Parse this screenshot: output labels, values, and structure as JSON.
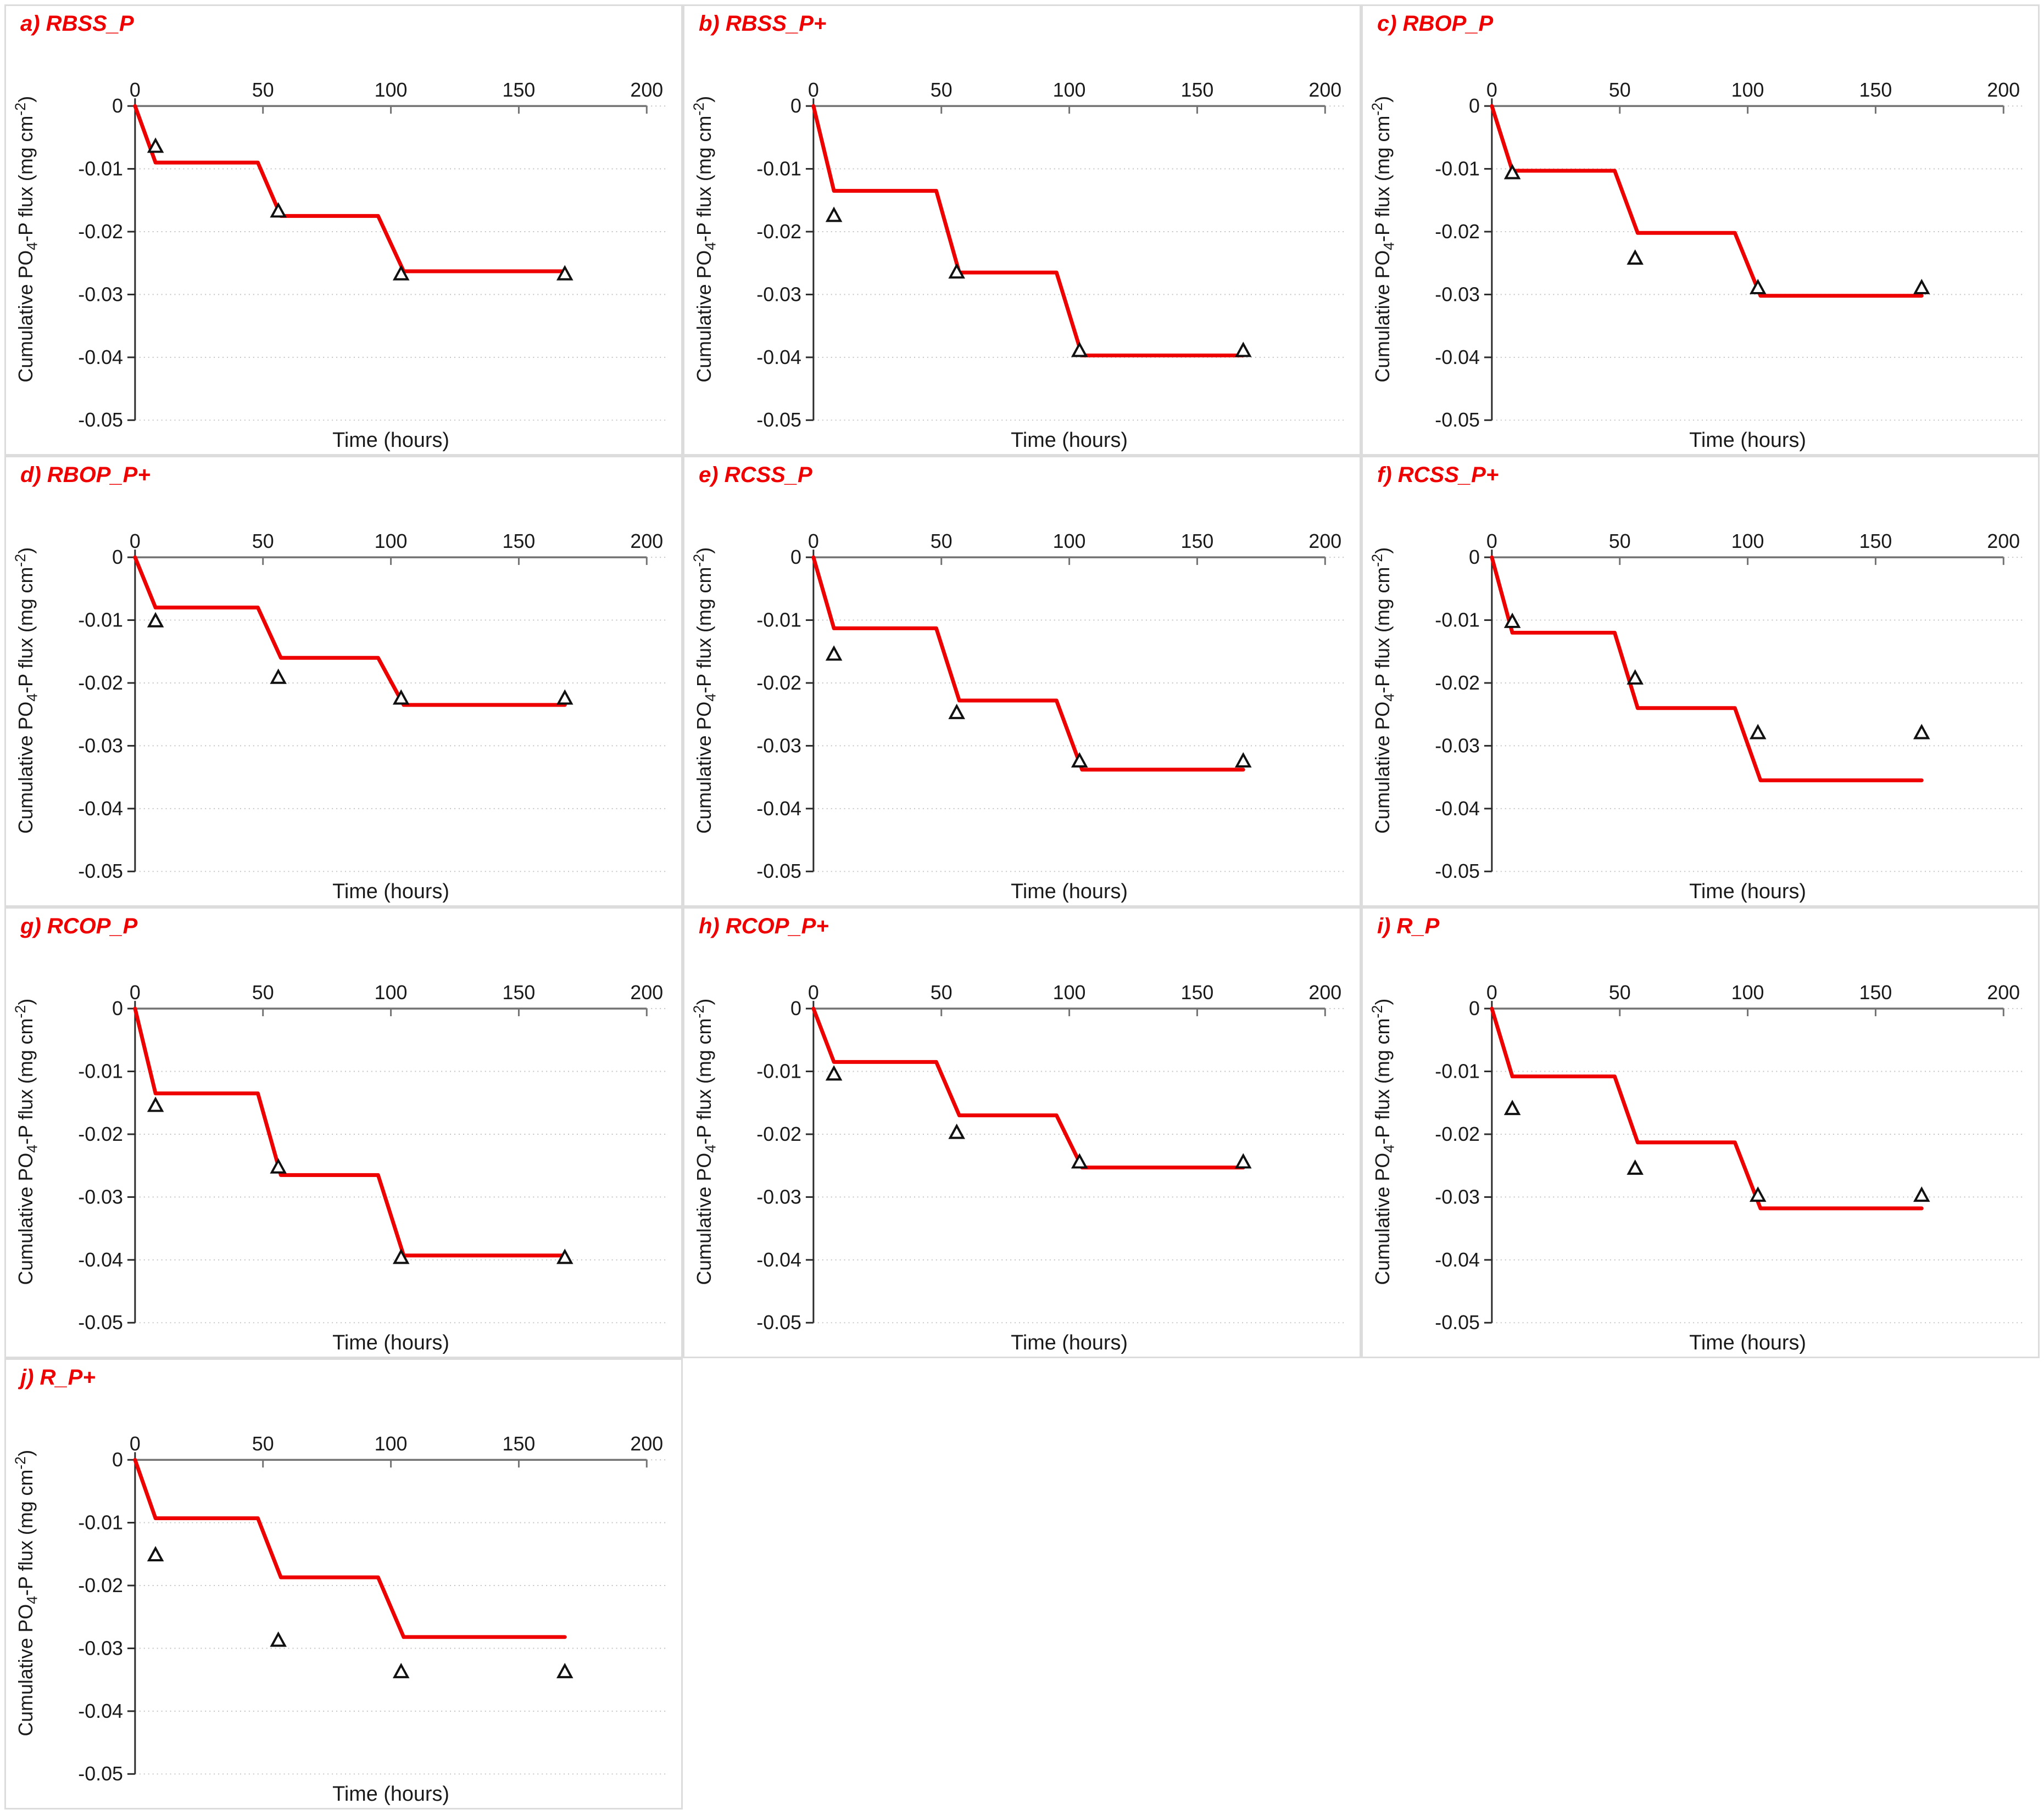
{
  "figure": {
    "panel_count": 10,
    "layout": "3 columns x 4 rows, last row has single panel"
  },
  "colors": {
    "line_red": "#ee0000",
    "title_red": "#ee0000",
    "marker_fill": "#ffffff",
    "marker_stroke": "#111111",
    "grid": "#c3c3c3",
    "x_axis": "#737373",
    "y_axis": "#2b2b2b",
    "tick_text": "#1a1a1a",
    "panel_border": "#dcdcdc",
    "background": "#ffffff"
  },
  "axes": {
    "x_label": "Time (hours)",
    "y_label_parts": {
      "prefix": "Cumulative PO",
      "subscript": "4",
      "middle": "-P flux (mg cm",
      "superscript": "-2",
      "suffix": ")"
    },
    "x_ticks": [
      0,
      50,
      100,
      150,
      200
    ],
    "y_tick_values": [
      0,
      -0.01,
      -0.02,
      -0.03,
      -0.04,
      -0.05
    ],
    "y_tick_labels": [
      "0",
      "-0.01",
      "-0.02",
      "-0.03",
      "-0.04",
      "-0.05"
    ],
    "x_range": [
      0,
      200
    ],
    "y_range": [
      -0.05,
      0
    ],
    "grid": "horizontal dotted",
    "x_axis_position": "top"
  },
  "chart_data": [
    {
      "id": "a",
      "title": "a) RBSS_P",
      "type": "line",
      "series": [
        {
          "name": "model-step-line",
          "x": [
            0,
            8,
            48,
            57,
            95,
            105,
            168
          ],
          "y": [
            0,
            -0.009,
            -0.009,
            -0.0175,
            -0.0175,
            -0.0263,
            -0.0263
          ]
        },
        {
          "name": "observed-triangles",
          "x": [
            8,
            56,
            104,
            168
          ],
          "y": [
            -0.0065,
            -0.0168,
            -0.0268,
            -0.0268
          ]
        }
      ]
    },
    {
      "id": "b",
      "title": "b) RBSS_P+",
      "type": "line",
      "series": [
        {
          "name": "model-step-line",
          "x": [
            0,
            8,
            48,
            57,
            95,
            105,
            168
          ],
          "y": [
            0,
            -0.0135,
            -0.0135,
            -0.0265,
            -0.0265,
            -0.0397,
            -0.0397
          ]
        },
        {
          "name": "observed-triangles",
          "x": [
            8,
            56,
            104,
            168
          ],
          "y": [
            -0.0175,
            -0.0265,
            -0.039,
            -0.039
          ]
        }
      ]
    },
    {
      "id": "c",
      "title": "c) RBOP_P",
      "type": "line",
      "series": [
        {
          "name": "model-step-line",
          "x": [
            0,
            8,
            48,
            57,
            95,
            105,
            168
          ],
          "y": [
            0,
            -0.0103,
            -0.0103,
            -0.0202,
            -0.0202,
            -0.0302,
            -0.0302
          ]
        },
        {
          "name": "observed-triangles",
          "x": [
            8,
            56,
            104,
            168
          ],
          "y": [
            -0.0107,
            -0.0243,
            -0.029,
            -0.029
          ]
        }
      ]
    },
    {
      "id": "d",
      "title": "d) RBOP_P+",
      "type": "line",
      "series": [
        {
          "name": "model-step-line",
          "x": [
            0,
            8,
            48,
            57,
            95,
            105,
            168
          ],
          "y": [
            0,
            -0.008,
            -0.008,
            -0.016,
            -0.016,
            -0.0235,
            -0.0235
          ]
        },
        {
          "name": "observed-triangles",
          "x": [
            8,
            56,
            104,
            168
          ],
          "y": [
            -0.0102,
            -0.0192,
            -0.0225,
            -0.0225
          ]
        }
      ]
    },
    {
      "id": "e",
      "title": "e) RCSS_P",
      "type": "line",
      "series": [
        {
          "name": "model-step-line",
          "x": [
            0,
            8,
            48,
            57,
            95,
            105,
            168
          ],
          "y": [
            0,
            -0.0113,
            -0.0113,
            -0.0228,
            -0.0228,
            -0.0338,
            -0.0338
          ]
        },
        {
          "name": "observed-triangles",
          "x": [
            8,
            56,
            104,
            168
          ],
          "y": [
            -0.0155,
            -0.0248,
            -0.0325,
            -0.0325
          ]
        }
      ]
    },
    {
      "id": "f",
      "title": "f) RCSS_P+",
      "type": "line",
      "series": [
        {
          "name": "model-step-line",
          "x": [
            0,
            8,
            48,
            57,
            95,
            105,
            168
          ],
          "y": [
            0,
            -0.012,
            -0.012,
            -0.024,
            -0.024,
            -0.0355,
            -0.0355
          ]
        },
        {
          "name": "observed-triangles",
          "x": [
            8,
            56,
            104,
            168
          ],
          "y": [
            -0.0103,
            -0.0193,
            -0.028,
            -0.028
          ]
        }
      ]
    },
    {
      "id": "g",
      "title": "g) RCOP_P",
      "type": "line",
      "series": [
        {
          "name": "model-step-line",
          "x": [
            0,
            8,
            48,
            57,
            95,
            105,
            168
          ],
          "y": [
            0,
            -0.0135,
            -0.0135,
            -0.0265,
            -0.0265,
            -0.0393,
            -0.0393
          ]
        },
        {
          "name": "observed-triangles",
          "x": [
            8,
            56,
            104,
            168
          ],
          "y": [
            -0.0155,
            -0.0253,
            -0.0397,
            -0.0397
          ]
        }
      ]
    },
    {
      "id": "h",
      "title": "h) RCOP_P+",
      "type": "line",
      "series": [
        {
          "name": "model-step-line",
          "x": [
            0,
            8,
            48,
            57,
            95,
            105,
            168
          ],
          "y": [
            0,
            -0.0085,
            -0.0085,
            -0.017,
            -0.017,
            -0.0253,
            -0.0253
          ]
        },
        {
          "name": "observed-triangles",
          "x": [
            8,
            56,
            104,
            168
          ],
          "y": [
            -0.0105,
            -0.0198,
            -0.0245,
            -0.0245
          ]
        }
      ]
    },
    {
      "id": "i",
      "title": "i) R_P",
      "type": "line",
      "series": [
        {
          "name": "model-step-line",
          "x": [
            0,
            8,
            48,
            57,
            95,
            105,
            168
          ],
          "y": [
            0,
            -0.0108,
            -0.0108,
            -0.0213,
            -0.0213,
            -0.0318,
            -0.0318
          ]
        },
        {
          "name": "observed-triangles",
          "x": [
            8,
            56,
            104,
            168
          ],
          "y": [
            -0.016,
            -0.0255,
            -0.0298,
            -0.0298
          ]
        }
      ]
    },
    {
      "id": "j",
      "title": "j) R_P+",
      "type": "line",
      "series": [
        {
          "name": "model-step-line",
          "x": [
            0,
            8,
            48,
            57,
            95,
            105,
            168
          ],
          "y": [
            0,
            -0.0093,
            -0.0093,
            -0.0187,
            -0.0187,
            -0.0282,
            -0.0282
          ]
        },
        {
          "name": "observed-triangles",
          "x": [
            8,
            56,
            104,
            168
          ],
          "y": [
            -0.0152,
            -0.0288,
            -0.0338,
            -0.0338
          ]
        }
      ]
    }
  ]
}
